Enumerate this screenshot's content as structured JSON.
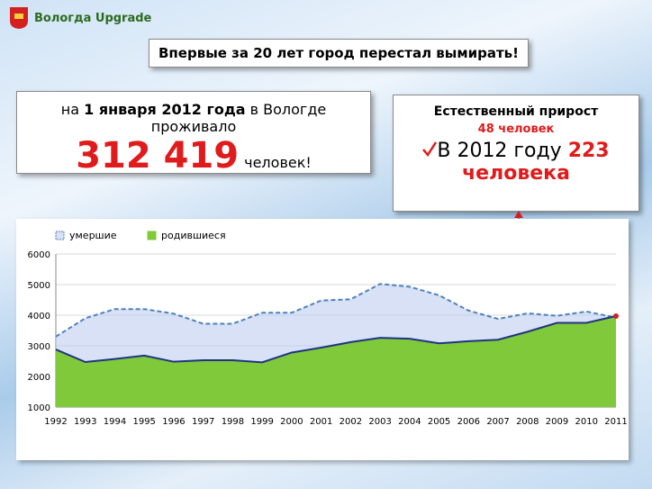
{
  "logo": "Вологда Upgrade",
  "headline": "Впервые за 20 лет город перестал вымирать!",
  "population": {
    "prefix": "на",
    "date": "1 января 2012 года",
    "suffix": "в Вологде проживало",
    "number": "312 419",
    "unit": "человек!"
  },
  "growth": {
    "title": "Естественный прирост",
    "value": "48 человек",
    "line_prefix": "В 2012 году",
    "line_number": "223",
    "line_unit": "человека"
  },
  "chart_data": {
    "type": "area",
    "categories": [
      "1992",
      "1993",
      "1994",
      "1995",
      "1996",
      "1997",
      "1998",
      "1999",
      "2000",
      "2001",
      "2002",
      "2003",
      "2004",
      "2005",
      "2006",
      "2007",
      "2008",
      "2009",
      "2010",
      "2011"
    ],
    "series": [
      {
        "name": "умершие",
        "color": "#4f81bd",
        "values": [
          3300,
          3900,
          4200,
          4200,
          4050,
          3720,
          3720,
          4080,
          4080,
          4480,
          4520,
          5020,
          4930,
          4650,
          4150,
          3880,
          4060,
          3980,
          4120,
          3920
        ]
      },
      {
        "name": "родившиеся",
        "color": "#7fc93a",
        "values": [
          2880,
          2470,
          2570,
          2680,
          2480,
          2530,
          2530,
          2460,
          2780,
          2940,
          3120,
          3260,
          3230,
          3080,
          3150,
          3200,
          3460,
          3750,
          3750,
          3970
        ]
      }
    ],
    "ylim": [
      1000,
      6000
    ],
    "yticks": [
      1000,
      2000,
      3000,
      4000,
      5000,
      6000
    ],
    "grid": true,
    "legend": "top-left"
  }
}
